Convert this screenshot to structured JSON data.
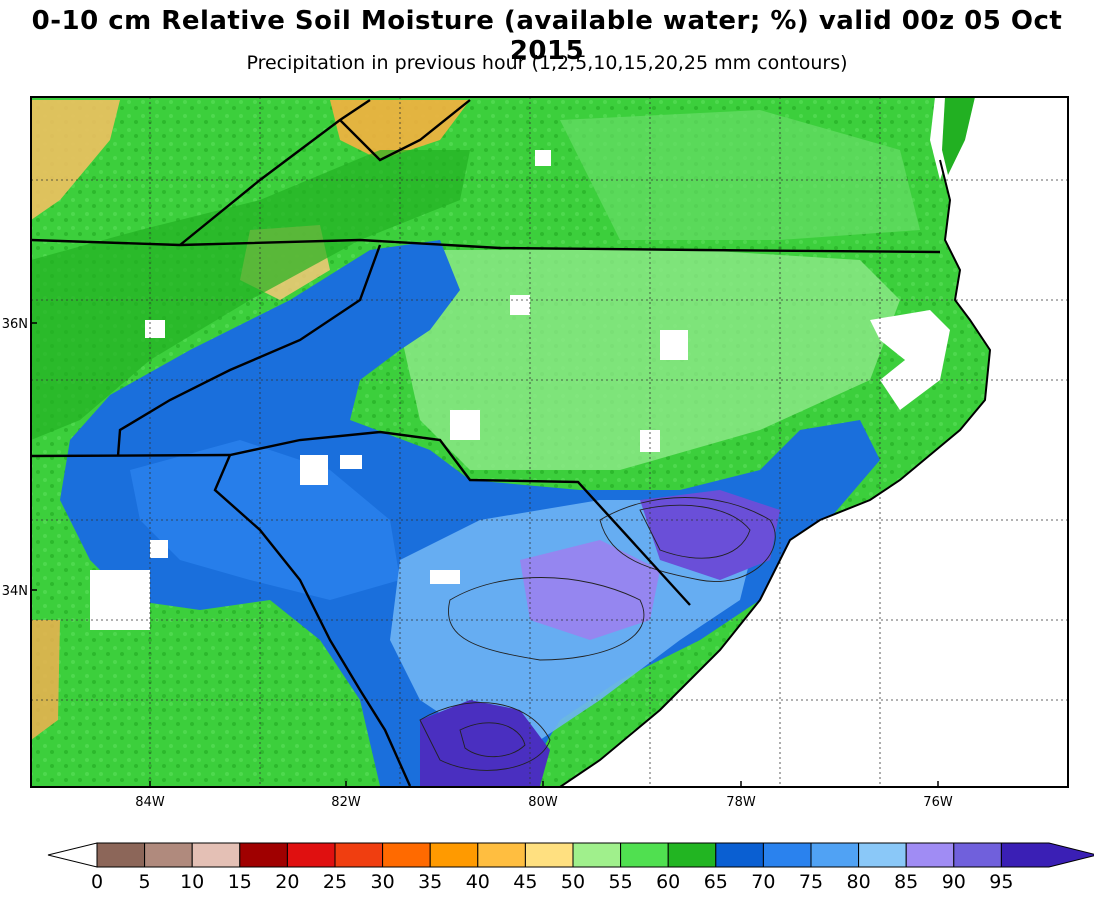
{
  "header": {
    "title": "0-10 cm Relative Soil Moisture (available water; %) valid 00z 05 Oct 2015",
    "subtitle": "Precipitation in previous hour (1,2,5,10,15,20,25 mm contours)"
  },
  "map": {
    "lon_ticks": [
      "84W",
      "82W",
      "80W",
      "78W",
      "76W"
    ],
    "lat_ticks": [
      "36N",
      "34N"
    ],
    "fill_colors": {
      "land_base": "#33cc33",
      "water": "#ffffff",
      "border": "#000000"
    }
  },
  "colorbar": {
    "labels": [
      "0",
      "5",
      "10",
      "15",
      "20",
      "25",
      "30",
      "35",
      "40",
      "45",
      "50",
      "55",
      "60",
      "65",
      "70",
      "75",
      "80",
      "85",
      "90",
      "95"
    ],
    "under_color": "#ffffff",
    "over_color": "#3a1fb5",
    "colors": [
      "#8c6659",
      "#b08a7d",
      "#e4c0b5",
      "#a00000",
      "#e01010",
      "#f03e10",
      "#ff6a00",
      "#ff9a00",
      "#ffbe40",
      "#ffe080",
      "#a0f08c",
      "#50e050",
      "#22b522",
      "#0a5fd2",
      "#2a82ee",
      "#50a2f4",
      "#8ac8f8",
      "#a08cf4",
      "#7060dc",
      "#3a1fb5"
    ]
  }
}
